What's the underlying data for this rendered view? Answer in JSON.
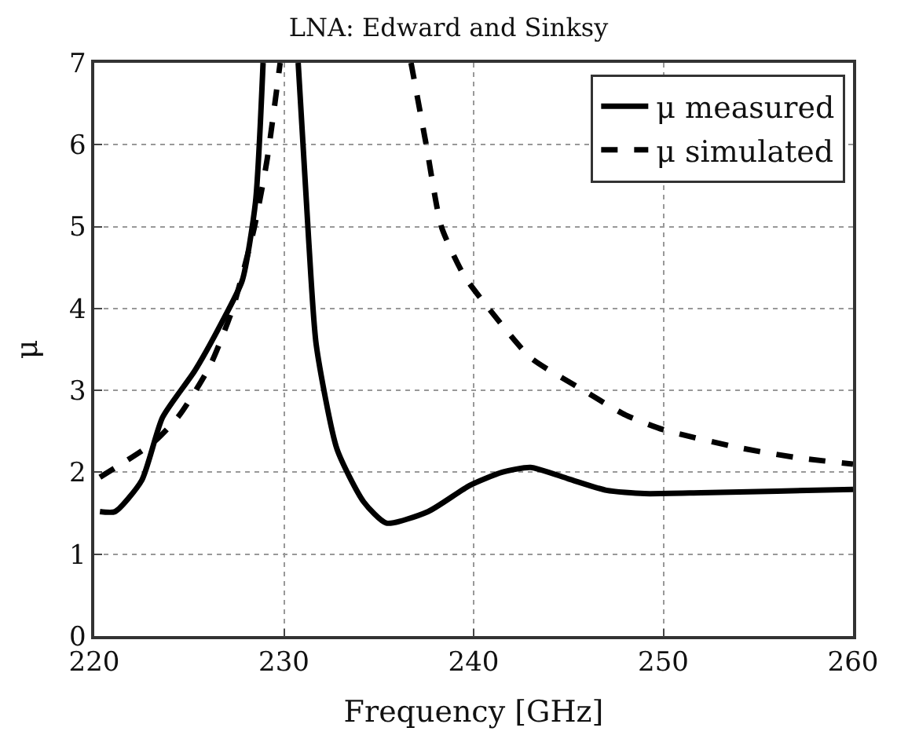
{
  "chart_data": {
    "type": "line",
    "title": "LNA: Edward and Sinksy",
    "xlabel": "Frequency [GHz]",
    "ylabel": "μ",
    "series": [
      {
        "name": "μ measured",
        "color": "#000000",
        "line_style": "solid",
        "x": [
          220.3,
          221.1,
          222.5,
          223.6,
          225.3,
          226.7,
          227.8,
          228.5,
          228.9,
          229.8,
          230.75,
          231.3,
          231.7,
          232.8,
          234.2,
          235.4,
          237.6,
          239.8,
          241.5,
          243,
          245,
          247,
          249,
          252,
          256,
          260
        ],
        "values": [
          1.52,
          1.52,
          1.9,
          2.67,
          3.24,
          3.82,
          4.34,
          5.3,
          7,
          null,
          7,
          4.85,
          3.56,
          2.28,
          1.64,
          1.38,
          1.52,
          1.84,
          2.0,
          2.06,
          1.92,
          1.78,
          1.74,
          1.75,
          1.77,
          1.79
        ]
      },
      {
        "name": "μ simulated",
        "color": "#000000",
        "line_style": "dashed",
        "x": [
          220.3,
          223.1,
          224.5,
          226.1,
          227.3,
          228.4,
          229.1,
          229.8,
          233,
          236.7,
          237.5,
          238.3,
          239.5,
          240.8,
          243,
          245.8,
          248,
          250,
          254,
          257,
          260
        ],
        "values": [
          1.94,
          2.36,
          2.7,
          3.3,
          4.0,
          4.95,
          5.8,
          7,
          null,
          7,
          6,
          5,
          4.4,
          4.0,
          3.4,
          3.0,
          2.7,
          2.52,
          2.3,
          2.18,
          2.1
        ]
      }
    ],
    "xlim": [
      220,
      260
    ],
    "xticks": [
      220,
      230,
      240,
      250,
      260
    ],
    "ylim": [
      0,
      7
    ],
    "yticks": [
      0,
      1,
      2,
      3,
      4,
      5,
      6,
      7
    ],
    "grid": true,
    "legend": "top right"
  }
}
